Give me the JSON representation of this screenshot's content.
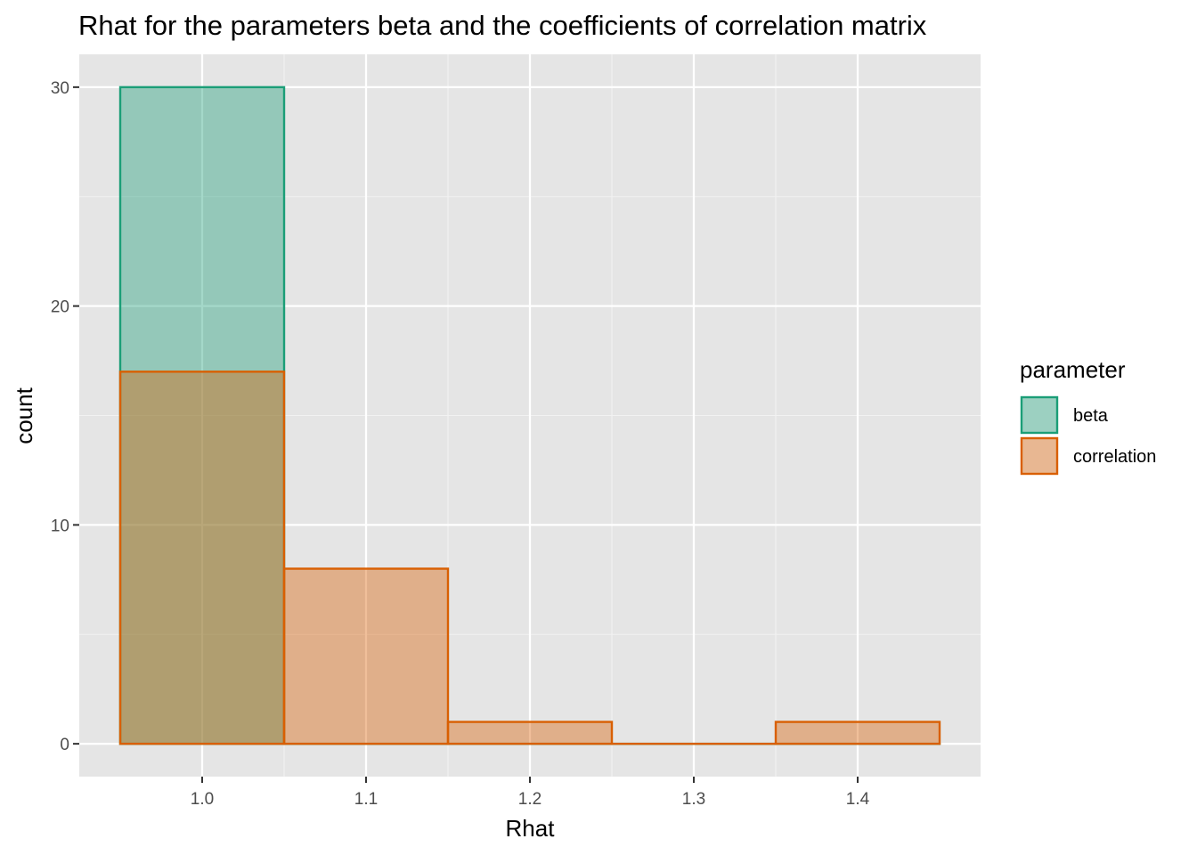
{
  "chart_data": {
    "type": "bar",
    "subtype": "histogram",
    "title": "Rhat for the parameters beta and the coefficients of correlation matrix",
    "xlabel": "Rhat",
    "ylabel": "count",
    "xlim": [
      0.925,
      1.475
    ],
    "ylim": [
      -1.5,
      31.5
    ],
    "x_ticks": [
      1.0,
      1.1,
      1.2,
      1.3,
      1.4
    ],
    "x_tick_labels": [
      "1.0",
      "1.1",
      "1.2",
      "1.3",
      "1.4"
    ],
    "y_ticks": [
      0,
      10,
      20,
      30
    ],
    "y_tick_labels": [
      "0",
      "10",
      "20",
      "30"
    ],
    "bin_width": 0.1,
    "bins": [
      [
        0.95,
        1.05
      ],
      [
        1.05,
        1.15
      ],
      [
        1.15,
        1.25
      ],
      [
        1.25,
        1.35
      ],
      [
        1.35,
        1.45
      ]
    ],
    "grid": true,
    "legend": {
      "title": "parameter",
      "position": "right"
    },
    "series": [
      {
        "name": "beta",
        "fill": "#1b9e77",
        "stroke": "#1b9e77",
        "values": [
          30,
          0,
          0,
          0,
          0
        ]
      },
      {
        "name": "correlation",
        "fill": "#d95f02",
        "stroke": "#d95f02",
        "values": [
          17,
          8,
          1,
          0,
          1
        ]
      }
    ],
    "colors": {
      "panel_background": "#e5e5e5",
      "grid": "#ffffff"
    }
  }
}
